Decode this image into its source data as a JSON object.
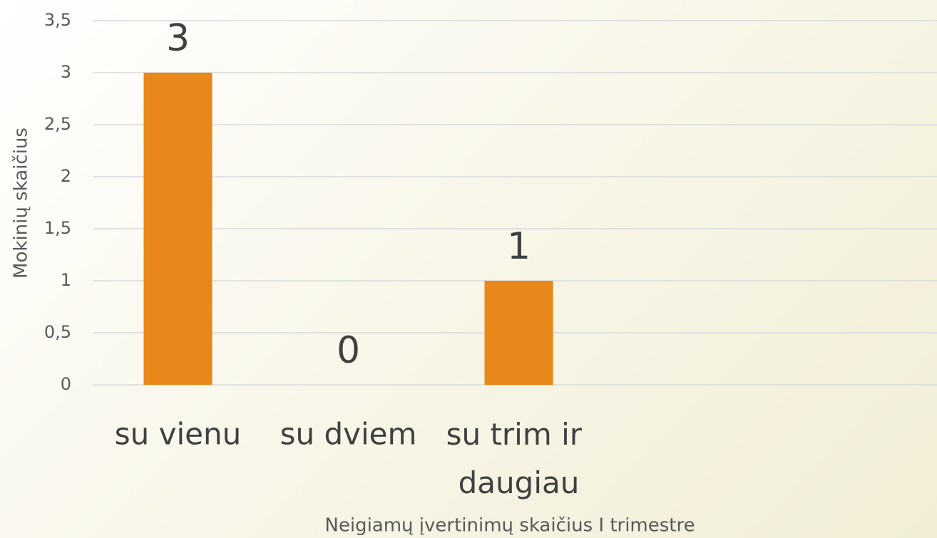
{
  "chart_data": {
    "type": "bar",
    "categories": [
      "su vienu",
      "su dviem",
      "su trim ir daugiau"
    ],
    "values": [
      3,
      0,
      1
    ],
    "color": "#e8871a",
    "xlabel": "Neigiamų įvertinimų skaičius I trimestre",
    "ylabel": "Mokinių skaičius",
    "ylim": [
      0,
      3.5
    ],
    "yticks": [
      0,
      {
        "value": 0.5,
        "label": "0,5"
      },
      1,
      {
        "value": 1.5,
        "label": "1,5"
      },
      2,
      {
        "value": 2.5,
        "label": "2,5"
      },
      3,
      {
        "value": 3.5,
        "label": "3,5"
      }
    ],
    "grid": true,
    "data_labels": true
  }
}
